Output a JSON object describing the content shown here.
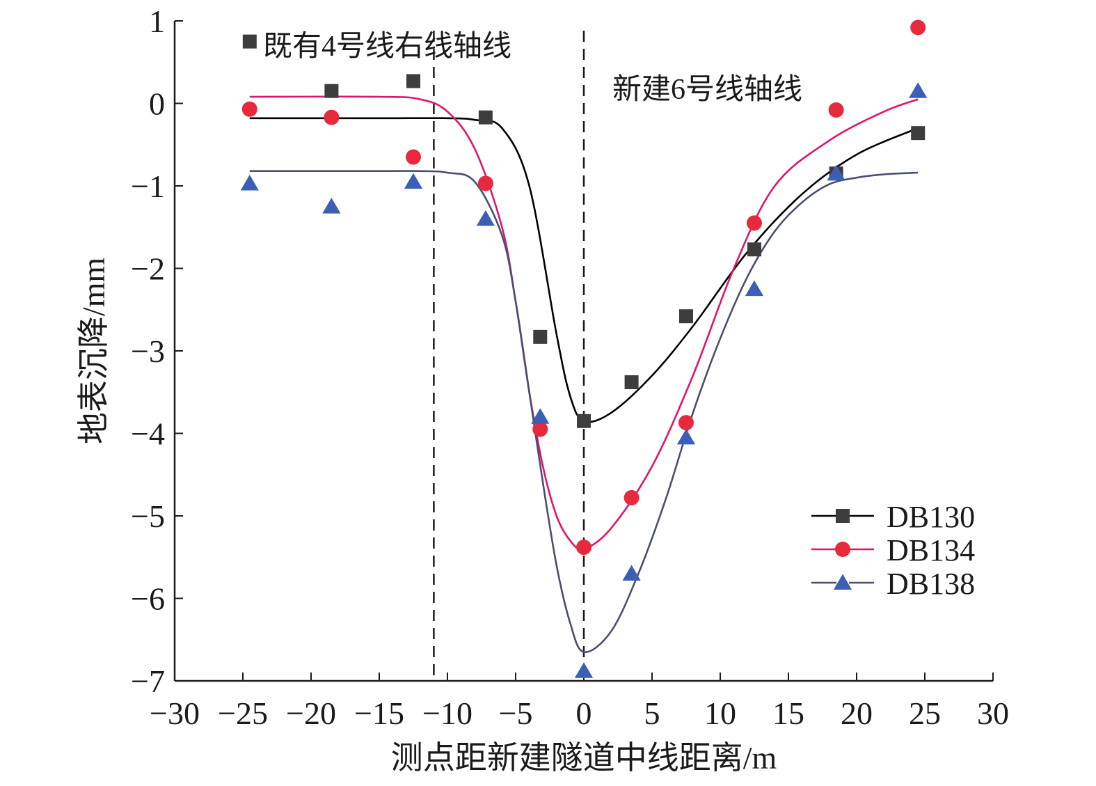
{
  "chart_data": {
    "type": "scatter",
    "xlabel": "测点距新建隧道中线距离/m",
    "ylabel": "地表沉降/mm",
    "xlim": [
      -30,
      30
    ],
    "ylim": [
      -7,
      1
    ],
    "xticks": [
      -30,
      -25,
      -20,
      -15,
      -10,
      -5,
      0,
      5,
      10,
      15,
      20,
      25,
      30
    ],
    "yticks": [
      1,
      0,
      -1,
      -2,
      -3,
      -4,
      -5,
      -6,
      -7
    ],
    "xtick_labels": [
      "−30",
      "−25",
      "−20",
      "−15",
      "−10",
      "−5",
      "0",
      "5",
      "10",
      "15",
      "20",
      "25",
      "30"
    ],
    "ytick_labels": [
      "1",
      "0",
      "−1",
      "−2",
      "−3",
      "−4",
      "−5",
      "−6",
      "−7"
    ],
    "grid": false,
    "legend_position": "bottom-right",
    "reference_lines": [
      {
        "x": -11,
        "label": "既有4号线右线轴线"
      },
      {
        "x": 0,
        "label": "新建6号线轴线"
      }
    ],
    "series": [
      {
        "name": "DB130",
        "marker": "square",
        "color": "#3d3d3d",
        "line_color": "#000000",
        "x": [
          -24.5,
          -18.5,
          -12.5,
          -7.2,
          -3.2,
          0,
          3.5,
          7.5,
          12.5,
          18.5,
          24.5
        ],
        "y": [
          0.75,
          0.15,
          0.27,
          -0.17,
          -2.83,
          -3.85,
          -3.38,
          -2.58,
          -1.77,
          -0.85,
          -0.36
        ],
        "fit": {
          "x": [
            -24.5,
            -15,
            -10,
            -8,
            -6,
            -4,
            -2,
            -1,
            0,
            2,
            5,
            8,
            12,
            16,
            20,
            24.5
          ],
          "y": [
            -0.18,
            -0.18,
            -0.18,
            -0.2,
            -0.3,
            -1.0,
            -2.8,
            -3.55,
            -3.85,
            -3.75,
            -3.3,
            -2.7,
            -1.8,
            -1.1,
            -0.62,
            -0.3
          ]
        }
      },
      {
        "name": "DB134",
        "marker": "circle",
        "color": "#e8283c",
        "line_color": "#e0136e",
        "x": [
          -24.5,
          -18.5,
          -12.5,
          -7.2,
          -3.2,
          0,
          3.5,
          7.5,
          12.5,
          18.5,
          24.5
        ],
        "y": [
          -0.07,
          -0.17,
          -0.65,
          -0.97,
          -3.95,
          -5.38,
          -4.78,
          -3.87,
          -1.45,
          -0.08,
          0.92
        ],
        "fit": {
          "x": [
            -24.5,
            -15,
            -12,
            -10,
            -8,
            -6,
            -5,
            -4,
            -3,
            -2,
            -1,
            0,
            2,
            5,
            8,
            11,
            14,
            18,
            22,
            24.5
          ],
          "y": [
            0.08,
            0.08,
            0.05,
            -0.1,
            -0.55,
            -1.5,
            -2.4,
            -3.5,
            -4.4,
            -5.0,
            -5.3,
            -5.4,
            -5.15,
            -4.4,
            -3.3,
            -2.0,
            -1.0,
            -0.45,
            -0.1,
            0.05
          ]
        }
      },
      {
        "name": "DB138",
        "marker": "triangle",
        "color": "#3a5fb4",
        "line_color": "#4a4f6e",
        "x": [
          -24.5,
          -18.5,
          -12.5,
          -7.2,
          -3.2,
          0,
          3.5,
          7.5,
          12.5,
          18.5,
          24.5
        ],
        "y": [
          -0.97,
          -1.25,
          -0.95,
          -1.4,
          -3.8,
          -6.88,
          -5.7,
          -4.05,
          -2.25,
          -0.85,
          0.15
        ],
        "fit": {
          "x": [
            -24.5,
            -15,
            -12,
            -10,
            -8,
            -6,
            -5,
            -4,
            -3,
            -2,
            -1,
            0,
            2,
            4,
            6,
            8,
            10,
            12,
            14,
            16,
            18,
            20,
            22,
            24.5
          ],
          "y": [
            -0.82,
            -0.82,
            -0.82,
            -0.84,
            -0.95,
            -1.6,
            -2.4,
            -3.5,
            -4.6,
            -5.6,
            -6.3,
            -6.65,
            -6.4,
            -5.7,
            -4.8,
            -3.75,
            -2.85,
            -2.1,
            -1.55,
            -1.2,
            -0.98,
            -0.9,
            -0.86,
            -0.84
          ]
        }
      }
    ]
  }
}
